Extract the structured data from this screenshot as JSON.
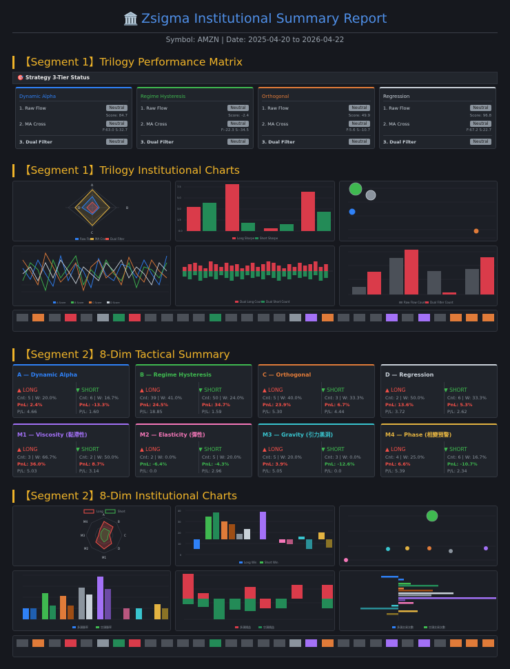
{
  "header": {
    "title": "Zsigma Institutional Summary Report",
    "icon": "bank-icon",
    "subtitle": "Symbol: AMZN | Date: 2025-04-20 to 2026-04-22"
  },
  "segments": {
    "s1_matrix": "【Segment 1】Trilogy Performance Matrix",
    "s1_charts": "【Segment 1】Trilogy Institutional Charts",
    "s2_summary": "【Segment 2】8-Dim Tactical Summary",
    "s2_charts": "【Segment 2】8-Dim Institutional Charts"
  },
  "strategy_bar": "🎯 Strategy 3-Tier Status",
  "matrix": [
    {
      "name": "Dynamic Alpha",
      "color": "#2f81f7",
      "r1": "1. Raw Flow",
      "r1b": "Neutral",
      "r1s": "Score: 84.7",
      "r2": "2. MA Cross",
      "r2b": "Neutral",
      "r2s": "F:63.0 S:32.7",
      "r3": "3. Dual Filter",
      "r3b": "Neutral"
    },
    {
      "name": "Regime Hysteresis",
      "color": "#3fb950",
      "r1": "1. Raw Flow",
      "r1b": "Neutral",
      "r1s": "Score: -2.4",
      "r2": "2. MA Cross",
      "r2b": "Neutral",
      "r2s": "F:-22.3 S:-34.5",
      "r3": "3. Dual Filter",
      "r3b": "Neutral"
    },
    {
      "name": "Orthogonal",
      "color": "#e07b39",
      "r1": "1. Raw Flow",
      "r1b": "Neutral",
      "r1s": "Score: 49.9",
      "r2": "2. MA Cross",
      "r2b": "Neutral",
      "r2s": "F:5.6 S:-10.7",
      "r3": "3. Dual Filter",
      "r3b": "Neutral"
    },
    {
      "name": "Regression",
      "color": "#c9d1d9",
      "r1": "1. Raw Flow",
      "r1b": "Neutral",
      "r1s": "Score: 96.8",
      "r2": "2. MA Cross",
      "r2b": "Neutral",
      "r2s": "F:67.2 S:22.7",
      "r3": "3. Dual Filter",
      "r3b": "Neutral"
    }
  ],
  "tactical": [
    {
      "name": "A — Dynamic Alpha",
      "color": "#2f81f7",
      "long": "LONG",
      "short": "SHORT",
      "lc": "Cnt: 5 | W: 20.0%",
      "lp": "PnL: 2.4%",
      "lpc": "neg",
      "lr": "P/L: 4.66",
      "sc": "Cnt: 6 | W: 16.7%",
      "sp": "PnL: -13.3%",
      "spc": "neg",
      "sr": "P/L: 1.60"
    },
    {
      "name": "B — Regime Hysteresis",
      "color": "#3fb950",
      "long": "LONG",
      "short": "SHORT",
      "lc": "Cnt: 39 | W: 41.0%",
      "lp": "PnL: 24.5%",
      "lpc": "neg",
      "lr": "P/L: 18.85",
      "sc": "Cnt: 50 | W: 24.0%",
      "sp": "PnL: 34.7%",
      "spc": "neg",
      "sr": "P/L: 1.59"
    },
    {
      "name": "C — Orthogonal",
      "color": "#e07b39",
      "long": "LONG",
      "short": "SHORT",
      "lc": "Cnt: 5 | W: 40.0%",
      "lp": "PnL: 23.9%",
      "lpc": "neg",
      "lr": "P/L: 5.30",
      "sc": "Cnt: 3 | W: 33.3%",
      "sp": "PnL: 6.7%",
      "spc": "neg",
      "sr": "P/L: 4.44"
    },
    {
      "name": "D — Regression",
      "color": "#c9d1d9",
      "long": "LONG",
      "short": "SHORT",
      "lc": "Cnt: 2 | W: 50.0%",
      "lp": "PnL: 13.6%",
      "lpc": "neg",
      "lr": "P/L: 3.72",
      "sc": "Cnt: 6 | W: 33.3%",
      "sp": "PnL: 5.3%",
      "spc": "neg",
      "sr": "P/L: 2.62"
    },
    {
      "name": "M1 — Viscosity (黏滯性)",
      "color": "#a371f7",
      "long": "LONG",
      "short": "SHORT",
      "lc": "Cnt: 3 | W: 66.7%",
      "lp": "PnL: 36.0%",
      "lpc": "neg",
      "lr": "P/L: 5.03",
      "sc": "Cnt: 2 | W: 50.0%",
      "sp": "PnL: 8.7%",
      "spc": "neg",
      "sr": "P/L: 3.14"
    },
    {
      "name": "M2 — Elasticity (彈性)",
      "color": "#f778ba",
      "long": "LONG",
      "short": "SHORT",
      "lc": "Cnt: 2 | W: 0.0%",
      "lp": "PnL: -6.4%",
      "lpc": "pos",
      "lr": "P/L: 0.0",
      "sc": "Cnt: 5 | W: 20.0%",
      "sp": "PnL: -4.3%",
      "spc": "pos",
      "sr": "P/L: 2.96"
    },
    {
      "name": "M3 — Gravity (引力黑洞)",
      "color": "#39c5cf",
      "long": "LONG",
      "short": "SHORT",
      "lc": "Cnt: 5 | W: 20.0%",
      "lp": "PnL: 3.9%",
      "lpc": "neg",
      "lr": "P/L: 5.05",
      "sc": "Cnt: 3 | W: 0.0%",
      "sp": "PnL: -12.6%",
      "spc": "pos",
      "sr": "P/L: 0.0"
    },
    {
      "name": "M4 — Phase (相變預警)",
      "color": "#e3b341",
      "long": "LONG",
      "short": "SHORT",
      "lc": "Cnt: 4 | W: 25.0%",
      "lp": "PnL: 6.6%",
      "lpc": "neg",
      "lr": "P/L: 5.39",
      "sc": "Cnt: 6 | W: 16.7%",
      "sp": "PnL: -10.7%",
      "spc": "pos",
      "sr": "P/L: 2.34"
    }
  ],
  "chart_data": [
    {
      "type": "radar",
      "axes": [
        "A",
        "B",
        "C",
        "D"
      ],
      "series": [
        {
          "name": "Raw Flow",
          "color": "#2f81f7",
          "values": [
            0.5,
            0.05,
            0.4,
            0.4
          ]
        },
        {
          "name": "MA Cross",
          "color": "#e3b341",
          "values": [
            0.95,
            0.6,
            0.9,
            0.2
          ]
        },
        {
          "name": "Dual Filter",
          "color": "#f85149",
          "values": [
            0.3,
            0.3,
            0.3,
            0.3
          ]
        }
      ]
    },
    {
      "type": "bar",
      "categories": [
        "A",
        "B",
        "C",
        "D"
      ],
      "series": [
        {
          "name": "Long Sharpe",
          "color": "#da3b4a",
          "values": [
            1.4,
            7.0,
            0.1,
            5.6
          ]
        },
        {
          "name": "Short Sharpe",
          "color": "#238b57",
          "values": [
            1.6,
            0.4,
            0.3,
            1.3
          ]
        }
      ],
      "ylim": [
        0,
        7.5
      ]
    },
    {
      "type": "scatter",
      "points": [
        {
          "x": 1.0,
          "y": 3.8,
          "r": 9,
          "color": "#3fb950"
        },
        {
          "x": 2.0,
          "y": 3.3,
          "r": 7,
          "color": "#8b949e"
        },
        {
          "x": 0.5,
          "y": 1.6,
          "r": 4.5,
          "color": "#2f81f7"
        },
        {
          "x": 16.5,
          "y": -1.2,
          "r": 3.5,
          "color": "#e07b39"
        }
      ]
    },
    {
      "type": "line",
      "series": [
        {
          "name": "A Score",
          "color": "#2f81f7"
        },
        {
          "name": "B Score",
          "color": "#3fb950"
        },
        {
          "name": "C Score",
          "color": "#e07b39"
        },
        {
          "name": "D Score",
          "color": "#c9d1d9"
        }
      ],
      "values": [
        [
          20,
          -10,
          40,
          5,
          -30,
          60,
          -20,
          30,
          10,
          -40,
          50,
          0,
          -20,
          30,
          20,
          -10,
          40,
          5,
          -30,
          60
        ],
        [
          -20,
          30,
          10,
          -50,
          40,
          -10,
          20,
          50,
          -30,
          10,
          -10,
          40,
          0,
          -20,
          30,
          -40,
          20,
          10,
          -10,
          30
        ],
        [
          40,
          10,
          -30,
          60,
          20,
          -20,
          0,
          30,
          -50,
          20,
          40,
          -10,
          10,
          -30,
          50,
          0,
          -20,
          40,
          10,
          -10
        ],
        [
          0,
          20,
          -20,
          30,
          -10,
          40,
          10,
          -30,
          20,
          0,
          -20,
          30,
          10,
          40,
          -10,
          20,
          0,
          -30,
          30,
          10
        ]
      ]
    },
    {
      "type": "bar",
      "series": [
        {
          "name": "Dual Long Count",
          "color": "#da3b4a"
        },
        {
          "name": "Dual Short Count",
          "color": "#238b57"
        }
      ]
    },
    {
      "type": "bar",
      "categories": [
        "A",
        "B",
        "C",
        "D"
      ],
      "series": [
        {
          "name": "Raw Flow Count",
          "color": "#4b5058",
          "values": [
            0.8,
            3.8,
            2.4,
            2.6
          ]
        },
        {
          "name": "Dual Filter Count",
          "color": "#da3b4a",
          "values": [
            2.3,
            4.6,
            0.2,
            3.8
          ]
        }
      ]
    },
    {
      "type": "radar",
      "legend": [
        "Long",
        "Short"
      ],
      "axes": [
        "A",
        "B",
        "C",
        "D",
        "M1",
        "M2",
        "M3",
        "M4"
      ]
    },
    {
      "type": "bar",
      "series": [
        {
          "name": "Long Win",
          "color": "#2f81f7"
        },
        {
          "name": "Short Win",
          "color": "#3fb950"
        }
      ],
      "values": [
        [
          0,
          -4
        ],
        [
          20,
          27
        ],
        [
          10,
          20
        ],
        [
          7,
          5
        ],
        [
          5,
          10
        ],
        [
          35,
          3
        ],
        [
          -3,
          -5
        ],
        [
          10,
          -8
        ],
        [
          7,
          -12
        ]
      ]
    },
    {
      "type": "scatter",
      "points": [
        {
          "x": 5,
          "y": 0.9,
          "r": 8,
          "color": "#3fb950"
        },
        {
          "x": 3,
          "y": 0.2,
          "r": 3,
          "color": "#39c5cf"
        },
        {
          "x": 4,
          "y": 0.2,
          "r": 3,
          "color": "#e3b341"
        },
        {
          "x": 5,
          "y": 0.2,
          "r": 3,
          "color": "#e07b39"
        },
        {
          "x": 6,
          "y": 0.1,
          "r": 3,
          "color": "#8b949e"
        },
        {
          "x": 8,
          "y": 0.2,
          "r": 3,
          "color": "#a371f7"
        },
        {
          "x": 0,
          "y": -0.2,
          "r": 3,
          "color": "#f778ba"
        }
      ]
    },
    {
      "type": "bar",
      "series": [
        {
          "name": "多頭勝率",
          "color": "#2f81f7"
        },
        {
          "name": "空頭勝率",
          "color": "#3fb950"
        }
      ]
    },
    {
      "type": "bar",
      "series": [
        {
          "name": "多頭損益",
          "color": "#da3b4a"
        },
        {
          "name": "空頭損益",
          "color": "#238b57"
        }
      ]
    },
    {
      "type": "bar",
      "series": [
        {
          "name": "多頭交易次數",
          "color": "#2f81f7"
        },
        {
          "name": "空頭交易次數",
          "color": "#3fb950"
        }
      ]
    }
  ],
  "strip_colors": [
    "#4b5058",
    "#e07b39",
    "#4b5058",
    "#da3b4a",
    "#4b5058",
    "#8b949e",
    "#238b57",
    "#da3b4a",
    "#4b5058",
    "#4b5058",
    "#4b5058",
    "#4b5058",
    "#238b57",
    "#4b5058",
    "#4b5058",
    "#4b5058",
    "#4b5058",
    "#8b949e",
    "#a371f7",
    "#e07b39",
    "#4b5058",
    "#4b5058",
    "#4b5058",
    "#a371f7",
    "#4b5058",
    "#a371f7",
    "#4b5058",
    "#e07b39",
    "#e07b39",
    "#e07b39"
  ]
}
